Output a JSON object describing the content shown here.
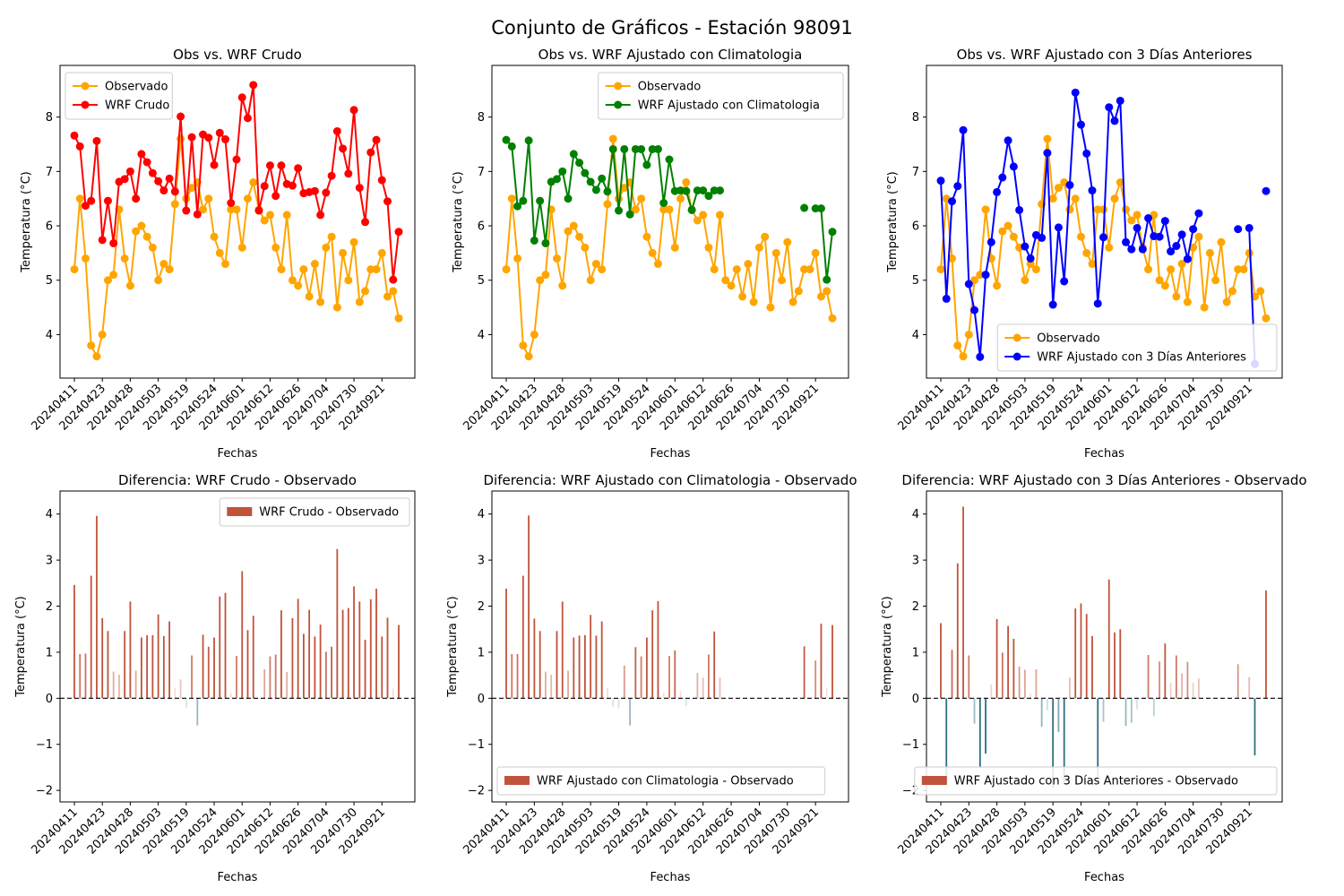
{
  "suptitle": "Conjunto de Gráficos - Estación 98091",
  "tick_labels": [
    "20240411",
    "20240423",
    "20240428",
    "20240503",
    "20240519",
    "20240524",
    "20240601",
    "20240612",
    "20240626",
    "20240704",
    "20240730",
    "20240921"
  ],
  "colors": {
    "observed": "#ffa500",
    "wrf_crudo": "#ff0000",
    "wrf_clim": "#008000",
    "wrf_3d": "#0000ff",
    "diff_pos": "#c0533a",
    "diff_neg": "#2f6f80",
    "zero_line": "#000000"
  },
  "series": {
    "observed": [
      5.2,
      6.5,
      5.4,
      3.8,
      3.6,
      4.0,
      5.0,
      5.1,
      6.3,
      5.4,
      4.9,
      5.9,
      6.0,
      5.8,
      5.6,
      5.0,
      5.3,
      5.2,
      6.4,
      7.6,
      6.5,
      6.7,
      6.8,
      6.3,
      6.5,
      5.8,
      5.5,
      5.3,
      6.3,
      6.3,
      5.6,
      6.5,
      6.8,
      6.3,
      6.1,
      6.2,
      5.6,
      5.2,
      6.2,
      5.0,
      4.9,
      5.2,
      4.7,
      5.3,
      4.6,
      5.6,
      5.8,
      4.5,
      5.5,
      5.0,
      5.7,
      4.6,
      4.8,
      5.2,
      5.2,
      5.5,
      4.7,
      4.8,
      4.3
    ],
    "wrf_crudo": [
      7.66,
      7.46,
      6.37,
      6.46,
      7.56,
      5.74,
      6.46,
      5.68,
      6.81,
      6.86,
      7.0,
      6.5,
      7.32,
      7.17,
      6.97,
      6.82,
      6.65,
      6.87,
      6.63,
      8.01,
      6.28,
      7.63,
      6.21,
      7.68,
      7.62,
      7.12,
      7.71,
      7.59,
      6.42,
      7.22,
      8.36,
      7.98,
      8.59,
      6.28,
      6.73,
      7.11,
      6.55,
      7.11,
      6.77,
      6.74,
      7.06,
      6.6,
      6.62,
      6.64,
      6.2,
      6.61,
      6.92,
      7.74,
      7.42,
      6.96,
      8.13,
      6.7,
      6.07,
      7.35,
      7.58,
      6.84,
      6.45,
      5.01,
      5.89
    ],
    "wrf_clim": [
      7.58,
      7.46,
      6.36,
      6.46,
      7.57,
      5.73,
      6.46,
      5.68,
      6.81,
      6.86,
      7.0,
      6.5,
      7.32,
      7.16,
      6.97,
      6.81,
      6.66,
      6.87,
      6.63,
      7.41,
      6.28,
      7.41,
      6.21,
      7.41,
      7.41,
      7.12,
      7.41,
      7.41,
      6.42,
      7.22,
      6.64,
      6.65,
      6.64,
      6.29,
      6.65,
      6.65,
      6.55,
      6.65,
      6.65,
      null,
      null,
      null,
      null,
      null,
      null,
      null,
      null,
      null,
      null,
      null,
      null,
      null,
      null,
      6.33,
      null,
      6.32,
      6.32,
      5.01,
      5.89
    ],
    "wrf_3d": [
      6.83,
      4.66,
      6.45,
      6.73,
      7.76,
      4.93,
      4.45,
      3.59,
      5.1,
      5.7,
      6.62,
      6.89,
      7.57,
      7.09,
      6.29,
      5.62,
      5.4,
      5.83,
      5.78,
      7.34,
      4.55,
      5.97,
      4.98,
      6.75,
      8.45,
      7.86,
      7.33,
      6.65,
      4.57,
      5.79,
      8.18,
      7.93,
      8.3,
      5.7,
      5.57,
      5.96,
      5.57,
      6.14,
      5.81,
      5.8,
      6.09,
      5.53,
      5.63,
      5.84,
      5.39,
      5.94,
      6.23,
      null,
      null,
      null,
      null,
      null,
      null,
      5.94,
      null,
      5.96,
      3.46,
      null,
      6.64
    ]
  },
  "chart_data": [
    {
      "type": "line",
      "title": "Obs vs. WRF Crudo",
      "xlabel": "Fechas",
      "ylabel": "Temperatura (°C)",
      "ylim": [
        3.2,
        8.95
      ],
      "yticks": [
        4,
        5,
        6,
        7,
        8
      ],
      "legend": {
        "position": "top-left",
        "entries": [
          "Observado",
          "WRF Crudo"
        ]
      },
      "lines": [
        {
          "name": "Observado",
          "key": "observed",
          "color": "#ffa500"
        },
        {
          "name": "WRF Crudo",
          "key": "wrf_crudo",
          "color": "#ff0000"
        }
      ]
    },
    {
      "type": "line",
      "title": "Obs vs. WRF Ajustado con Climatologia",
      "xlabel": "Fechas",
      "ylabel": "Temperatura (°C)",
      "ylim": [
        3.2,
        8.95
      ],
      "yticks": [
        4,
        5,
        6,
        7,
        8
      ],
      "legend": {
        "position": "top-right",
        "entries": [
          "Observado",
          "WRF Ajustado con Climatologia"
        ]
      },
      "lines": [
        {
          "name": "Observado",
          "key": "observed",
          "color": "#ffa500"
        },
        {
          "name": "WRF Ajustado con Climatologia",
          "key": "wrf_clim",
          "color": "#008000"
        }
      ]
    },
    {
      "type": "line",
      "title": "Obs vs. WRF Ajustado con 3 Días Anteriores",
      "xlabel": "Fechas",
      "ylabel": "Temperatura (°C)",
      "ylim": [
        3.2,
        8.95
      ],
      "yticks": [
        4,
        5,
        6,
        7,
        8
      ],
      "legend": {
        "position": "bottom-right",
        "entries": [
          "Observado",
          "WRF Ajustado con 3 Días Anteriores"
        ]
      },
      "lines": [
        {
          "name": "Observado",
          "key": "observed",
          "color": "#ffa500"
        },
        {
          "name": "WRF Ajustado con 3 Días Anteriores",
          "key": "wrf_3d",
          "color": "#0000ff"
        }
      ]
    },
    {
      "type": "bar",
      "title": "Diferencia: WRF Crudo - Observado",
      "xlabel": "Fechas",
      "ylabel": "Temperatura (°C)",
      "ylim": [
        -2.25,
        4.5
      ],
      "yticks": [
        -2,
        -1,
        0,
        1,
        2,
        3,
        4
      ],
      "legend": {
        "position": "top-right",
        "entries": [
          "WRF Crudo - Observado"
        ]
      },
      "model_key": "wrf_crudo"
    },
    {
      "type": "bar",
      "title": "Diferencia: WRF Ajustado con Climatologia - Observado",
      "xlabel": "Fechas",
      "ylabel": "Temperatura (°C)",
      "ylim": [
        -2.25,
        4.5
      ],
      "yticks": [
        -2,
        -1,
        0,
        1,
        2,
        3,
        4
      ],
      "legend": {
        "position": "bottom-left",
        "entries": [
          "WRF Ajustado con Climatologia - Observado"
        ]
      },
      "model_key": "wrf_clim"
    },
    {
      "type": "bar",
      "title": "Diferencia: WRF Ajustado con 3 Días Anteriores - Observado",
      "xlabel": "Fechas",
      "ylabel": "Temperatura (°C)",
      "ylim": [
        -2.25,
        4.5
      ],
      "yticks": [
        -2,
        -1,
        0,
        1,
        2,
        3,
        4
      ],
      "legend": {
        "position": "bottom-right",
        "entries": [
          "WRF Ajustado con 3 Días Anteriores - Observado"
        ]
      },
      "model_key": "wrf_3d"
    }
  ]
}
